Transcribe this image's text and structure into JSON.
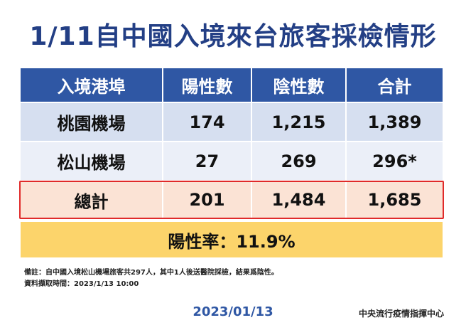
{
  "title": "1/11自中國入境來台旅客採檢情形",
  "table": {
    "header": [
      "入境港埠",
      "陽性數",
      "陰性數",
      "合計"
    ],
    "rows": [
      [
        "桃園機場",
        "174",
        "1,215",
        "1,389"
      ],
      [
        "松山機場",
        "27",
        "269",
        "296*"
      ]
    ],
    "total": [
      "總計",
      "201",
      "1,484",
      "1,685"
    ]
  },
  "positive_rate": "陽性率：11.9%",
  "notes": [
    "備註：自中國入境松山機場旅客共297人，其中1人後送醫院採檢，結果爲陰性。",
    "資料擷取時間：2023/1/13 10:00"
  ],
  "footer": {
    "date": "2023/01/13",
    "organization": "中央流行疫情指揮中心"
  }
}
